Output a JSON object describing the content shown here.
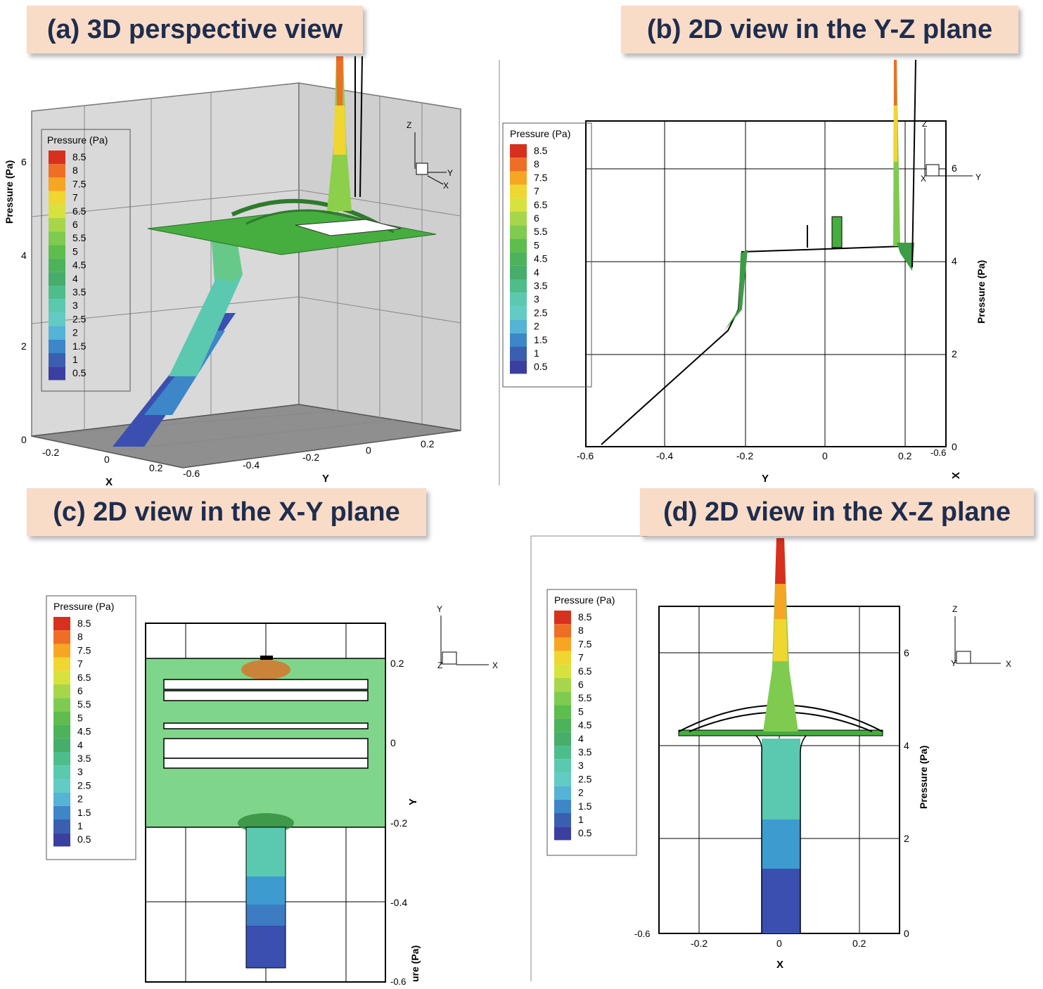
{
  "panels": {
    "a": {
      "title": "(a) 3D perspective view"
    },
    "b": {
      "title": "(b) 2D view in the Y-Z plane"
    },
    "c": {
      "title": "(c) 2D view in the X-Y plane"
    },
    "d": {
      "title": "(d) 2D view in the X-Z plane"
    }
  },
  "legend": {
    "title": "Pressure (Pa)",
    "levels": [
      "8.5",
      "8",
      "7.5",
      "7",
      "6.5",
      "6",
      "5.5",
      "5",
      "4.5",
      "4",
      "3.5",
      "3",
      "2.5",
      "2",
      "1.5",
      "1",
      "0.5"
    ],
    "colors": [
      "#d7301f",
      "#ef6e25",
      "#f6a623",
      "#f0d630",
      "#d8e23e",
      "#a7d64a",
      "#7fcb4f",
      "#5dbd4d",
      "#4cb35a",
      "#47ad6a",
      "#4ebd8c",
      "#5bc8b0",
      "#62cbc4",
      "#55b3d6",
      "#3d86c8",
      "#3a5fb0",
      "#3a3fa0"
    ]
  },
  "axes": {
    "a": {
      "z_label": "Pressure (Pa)",
      "z_ticks": [
        "6",
        "4",
        "2",
        "0"
      ],
      "x_label": "X",
      "x_ticks": [
        "-0.2",
        "0",
        "0.2"
      ],
      "y_label": "Y",
      "y_ticks": [
        "-0.6",
        "-0.4",
        "-0.2",
        "0",
        "0.2"
      ],
      "triad": {
        "z": "Z",
        "y": "Y",
        "x": "X"
      }
    },
    "b": {
      "x_label": "Y",
      "x_ticks": [
        "-0.6",
        "-0.4",
        "-0.2",
        "0",
        "0.2"
      ],
      "right_label": "Pressure (Pa)",
      "right_ticks": [
        "6",
        "4",
        "2",
        "0"
      ],
      "x_extra": "X",
      "corner": "-0.6",
      "triad": {
        "z": "Z",
        "y": "Y",
        "x": "X"
      }
    },
    "c": {
      "right_label": "Y",
      "right_ticks": [
        "0.2",
        "0",
        "-0.2",
        "-0.4"
      ],
      "bottom_right": "-0.6",
      "cut_label": "ure (Pa)",
      "triad": {
        "y": "Y",
        "x": "X",
        "z": "Z"
      }
    },
    "d": {
      "x_label": "X",
      "x_ticks": [
        "-0.2",
        "0",
        "0.2"
      ],
      "right_label": "Pressure (Pa)",
      "right_ticks": [
        "6",
        "4",
        "2",
        "0"
      ],
      "corner": "-0.6",
      "triad": {
        "z": "Z",
        "x": "X",
        "y": "Y"
      }
    }
  }
}
